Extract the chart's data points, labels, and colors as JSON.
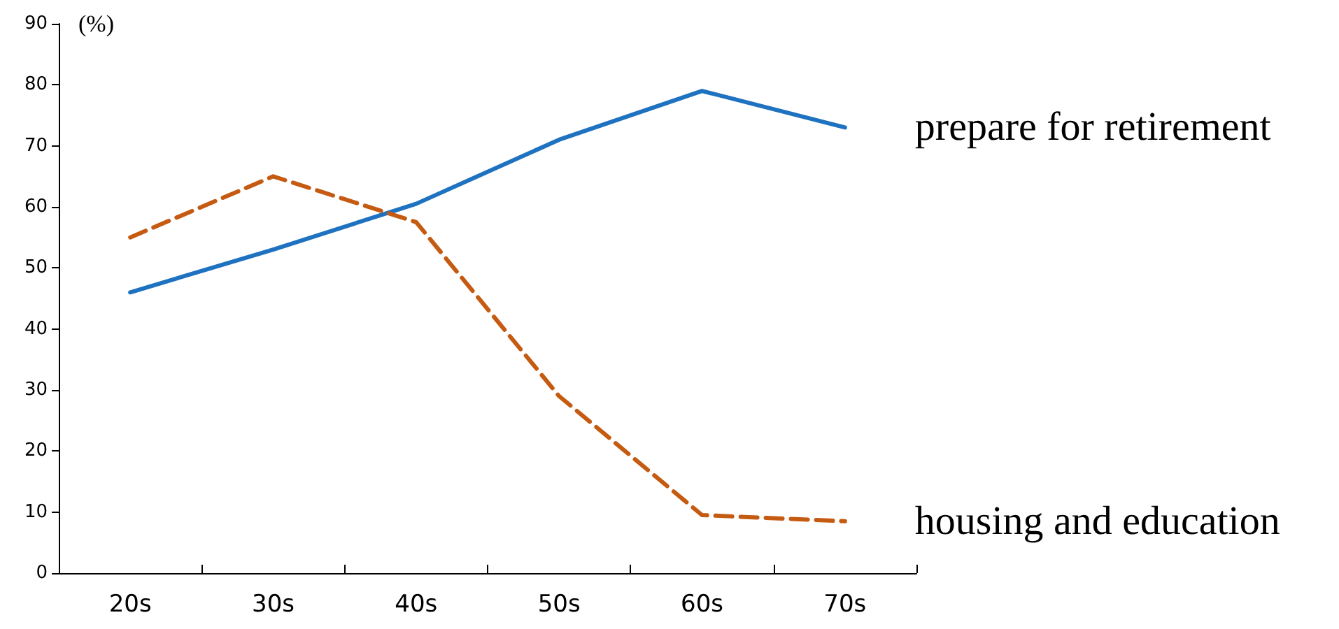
{
  "chart_data": {
    "type": "line",
    "ylabel": "(%)",
    "categories": [
      "20s",
      "30s",
      "40s",
      "50s",
      "60s",
      "70s"
    ],
    "series": [
      {
        "name": "prepare for retirement",
        "color": "#1f72c0",
        "line_style": "solid",
        "values": [
          46,
          53,
          60.5,
          71,
          79,
          73
        ]
      },
      {
        "name": "housing and education",
        "color": "#c55a11",
        "line_style": "dashed",
        "values": [
          55,
          65,
          57.5,
          29,
          9.5,
          8.5
        ]
      }
    ],
    "ylim": [
      0,
      90
    ],
    "yticks": [
      0,
      10,
      20,
      30,
      40,
      50,
      60,
      70,
      80,
      90
    ],
    "grid": false,
    "legend": false,
    "marker": "none"
  }
}
